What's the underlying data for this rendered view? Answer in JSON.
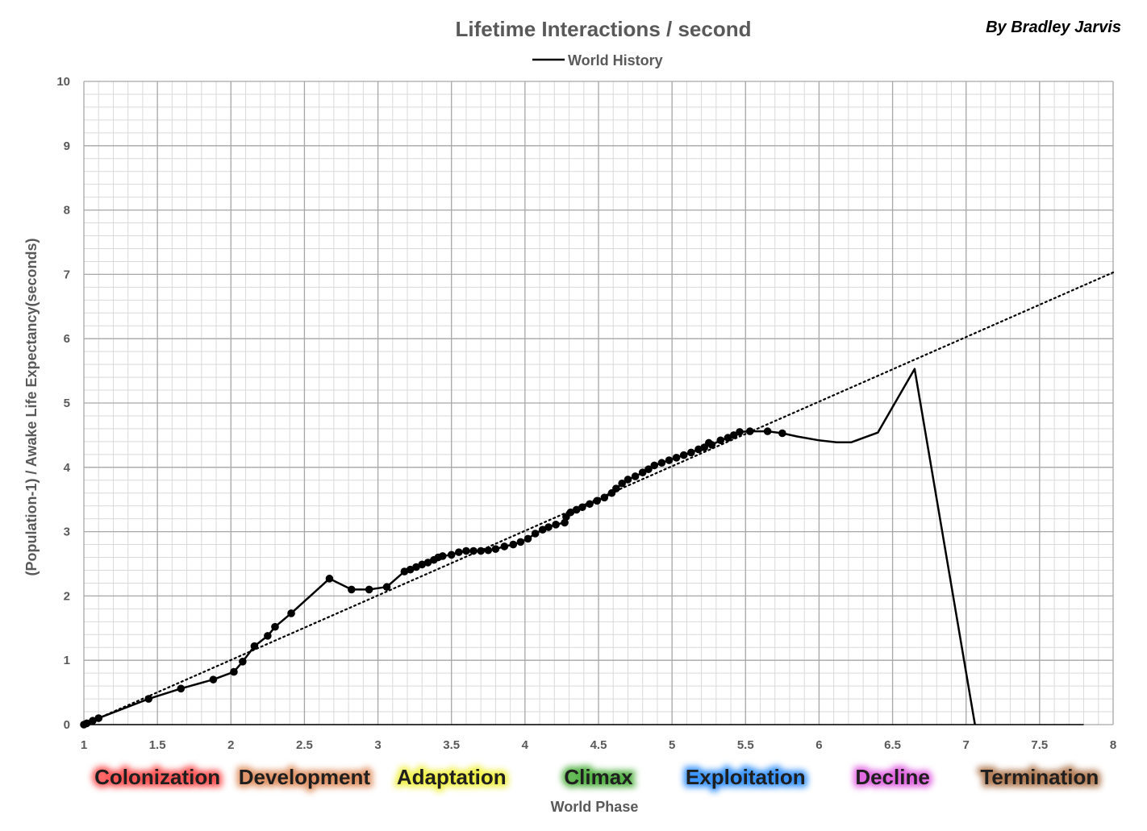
{
  "author": "By Bradley Jarvis",
  "chart_data": {
    "type": "line",
    "title": "Lifetime Interactions / second",
    "xlabel": "World Phase",
    "ylabel": "(Population-1) / Awake Life Expectancy(seconds)",
    "xlim": [
      1,
      8
    ],
    "ylim": [
      0,
      10
    ],
    "x_ticks": [
      "1",
      "1.5",
      "2",
      "2.5",
      "3",
      "3.5",
      "4",
      "4.5",
      "5",
      "5.5",
      "6",
      "6.5",
      "7",
      "7.5",
      "8"
    ],
    "y_ticks": [
      "0",
      "1",
      "2",
      "3",
      "4",
      "5",
      "6",
      "7",
      "8",
      "9",
      "10"
    ],
    "grid": true,
    "legend_position": "top-center",
    "colors": {
      "line": "#000000",
      "grid": "#c8c8c8",
      "text": "#595959"
    },
    "series": [
      {
        "name": "World History",
        "style": "solid",
        "points": [
          [
            1.0,
            0.0
          ],
          [
            1.02,
            0.02
          ],
          [
            1.06,
            0.06
          ],
          [
            1.1,
            0.1
          ],
          [
            1.44,
            0.4
          ],
          [
            1.66,
            0.56
          ],
          [
            1.88,
            0.7
          ],
          [
            2.02,
            0.82
          ],
          [
            2.08,
            0.98
          ],
          [
            2.16,
            1.22
          ],
          [
            2.25,
            1.38
          ],
          [
            2.3,
            1.52
          ],
          [
            2.41,
            1.73
          ],
          [
            2.67,
            2.27
          ],
          [
            2.82,
            2.1
          ],
          [
            2.94,
            2.1
          ],
          [
            3.06,
            2.14
          ],
          [
            3.18,
            2.38
          ],
          [
            3.22,
            2.41
          ],
          [
            3.26,
            2.45
          ],
          [
            3.3,
            2.49
          ],
          [
            3.34,
            2.52
          ],
          [
            3.38,
            2.56
          ],
          [
            3.41,
            2.6
          ],
          [
            3.44,
            2.62
          ],
          [
            3.5,
            2.64
          ],
          [
            3.55,
            2.68
          ],
          [
            3.6,
            2.7
          ],
          [
            3.65,
            2.7
          ],
          [
            3.7,
            2.7
          ],
          [
            3.75,
            2.71
          ],
          [
            3.8,
            2.73
          ],
          [
            3.86,
            2.77
          ],
          [
            3.92,
            2.8
          ],
          [
            3.97,
            2.84
          ],
          [
            4.02,
            2.89
          ],
          [
            4.07,
            2.97
          ],
          [
            4.12,
            3.03
          ],
          [
            4.16,
            3.07
          ],
          [
            4.21,
            3.11
          ],
          [
            4.27,
            3.14
          ],
          [
            4.28,
            3.23
          ],
          [
            4.31,
            3.3
          ],
          [
            4.35,
            3.34
          ],
          [
            4.39,
            3.38
          ],
          [
            4.44,
            3.43
          ],
          [
            4.49,
            3.48
          ],
          [
            4.54,
            3.53
          ],
          [
            4.59,
            3.6
          ],
          [
            4.62,
            3.67
          ],
          [
            4.66,
            3.75
          ],
          [
            4.7,
            3.81
          ],
          [
            4.75,
            3.86
          ],
          [
            4.8,
            3.92
          ],
          [
            4.84,
            3.97
          ],
          [
            4.88,
            4.03
          ],
          [
            4.93,
            4.07
          ],
          [
            4.98,
            4.11
          ],
          [
            5.03,
            4.15
          ],
          [
            5.08,
            4.19
          ],
          [
            5.13,
            4.23
          ],
          [
            5.18,
            4.28
          ],
          [
            5.22,
            4.31
          ],
          [
            5.25,
            4.38
          ],
          [
            5.27,
            4.35
          ],
          [
            5.33,
            4.42
          ],
          [
            5.38,
            4.46
          ],
          [
            5.42,
            4.5
          ],
          [
            5.46,
            4.55
          ],
          [
            5.53,
            4.56
          ],
          [
            5.65,
            4.56
          ],
          [
            5.75,
            4.53
          ],
          [
            5.85,
            4.48
          ],
          [
            6.0,
            4.42
          ],
          [
            6.12,
            4.39
          ],
          [
            6.22,
            4.39
          ],
          [
            6.4,
            4.54
          ],
          [
            6.65,
            5.53
          ],
          [
            7.06,
            0.0
          ]
        ],
        "marker_count": 72
      },
      {
        "name": "",
        "style": "dotted",
        "trend": "linear",
        "points": [
          [
            1.0,
            0.0
          ],
          [
            8.0,
            7.03
          ]
        ]
      }
    ],
    "x_baseline_end": 7.8
  },
  "phases": [
    {
      "label": "Colonization",
      "glow": "#ff5050"
    },
    {
      "label": "Development",
      "glow": "#e09060"
    },
    {
      "label": "Adaptation",
      "glow": "#f0f040"
    },
    {
      "label": "Climax",
      "glow": "#50b040"
    },
    {
      "label": "Exploitation",
      "glow": "#3090ff"
    },
    {
      "label": "Decline",
      "glow": "#e060e0"
    },
    {
      "label": "Termination",
      "glow": "#b07850"
    }
  ]
}
